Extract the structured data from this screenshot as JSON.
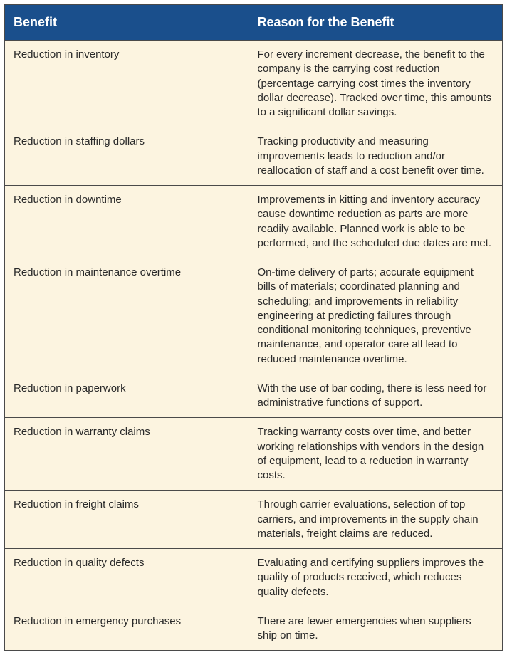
{
  "table": {
    "header_bg": "#1a4f8c",
    "header_color": "#ffffff",
    "cell_bg": "#fcf4e0",
    "border_color": "#4a4a4a",
    "header_fontsize": 18,
    "cell_fontsize": 15,
    "col_widths_pct": [
      49,
      51
    ],
    "columns": [
      "Benefit",
      "Reason for the Benefit"
    ],
    "rows": [
      {
        "benefit": "Reduction in inventory",
        "reason": "For every increment decrease, the benefit to the company is the carrying cost reduction (percentage carrying cost times the inventory dollar decrease). Tracked over time, this amounts to a significant dollar savings."
      },
      {
        "benefit": "Reduction in staffing dollars",
        "reason": "Tracking productivity and measuring improvements leads to reduction and/or reallocation of staff and a cost benefit over time."
      },
      {
        "benefit": "Reduction in downtime",
        "reason": "Improvements in kitting and inventory accuracy cause downtime reduction as parts are more readily available. Planned work is able to be performed, and the scheduled due dates are met."
      },
      {
        "benefit": "Reduction in maintenance overtime",
        "reason": "On-time delivery of parts; accurate equipment bills of materials; coordinated planning and scheduling; and improvements in reliability engineering at predicting failures through conditional monitoring techniques, preventive maintenance, and operator care all lead to reduced maintenance overtime."
      },
      {
        "benefit": "Reduction in paperwork",
        "reason": "With the use of bar coding, there is less need for administrative functions of support."
      },
      {
        "benefit": "Reduction in warranty claims",
        "reason": "Tracking warranty costs over time, and better working relationships with vendors in the design of equipment, lead to a reduction in warranty costs."
      },
      {
        "benefit": "Reduction in freight claims",
        "reason": "Through carrier evaluations, selection of top carriers, and improvements in the supply chain materials, freight claims are reduced."
      },
      {
        "benefit": "Reduction in quality defects",
        "reason": "Evaluating and certifying suppliers improves the quality of products received, which reduces quality defects."
      },
      {
        "benefit": "Reduction in emergency purchases",
        "reason": "There are fewer emergencies when suppliers ship on time."
      }
    ]
  }
}
